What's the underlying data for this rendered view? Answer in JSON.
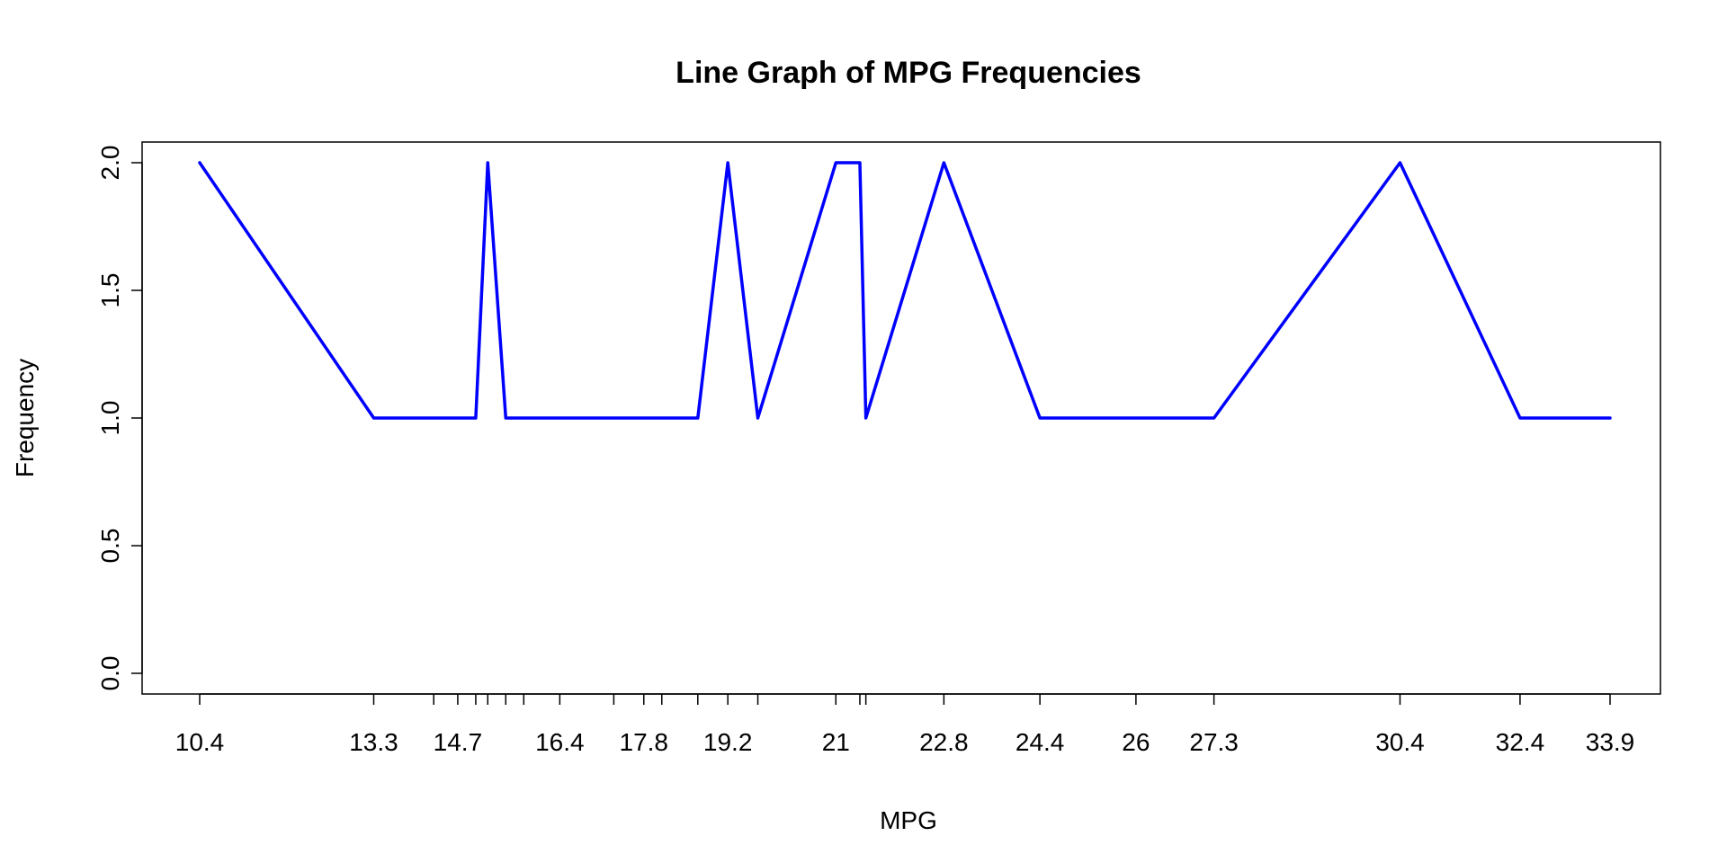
{
  "chart_data": {
    "type": "line",
    "title": "Line Graph of MPG Frequencies",
    "xlabel": "MPG",
    "ylabel": "Frequency",
    "x": [
      10.4,
      13.3,
      14.3,
      14.7,
      15,
      15.2,
      15.5,
      15.8,
      16.4,
      17.3,
      17.8,
      18.1,
      18.7,
      19.2,
      19.7,
      21,
      21.4,
      21.5,
      22.8,
      24.4,
      26,
      27.3,
      30.4,
      32.4,
      33.9
    ],
    "x_tick_labels": [
      "10.4",
      "13.3",
      "14.7",
      "16.4",
      "17.8",
      "19.2",
      "21",
      "22.8",
      "24.4",
      "26",
      "27.3",
      "30.4",
      "32.4",
      "33.9"
    ],
    "series": [
      {
        "values": [
          2,
          1,
          1,
          1,
          1,
          2,
          1,
          1,
          1,
          1,
          1,
          1,
          1,
          2,
          1,
          2,
          2,
          1,
          2,
          1,
          1,
          1,
          2,
          1,
          1
        ],
        "color": "#0000FF"
      }
    ],
    "yticks": [
      "0.0",
      "0.5",
      "1.0",
      "1.5",
      "2.0"
    ],
    "ylim": [
      0,
      2
    ],
    "grid": false,
    "legend": false
  }
}
